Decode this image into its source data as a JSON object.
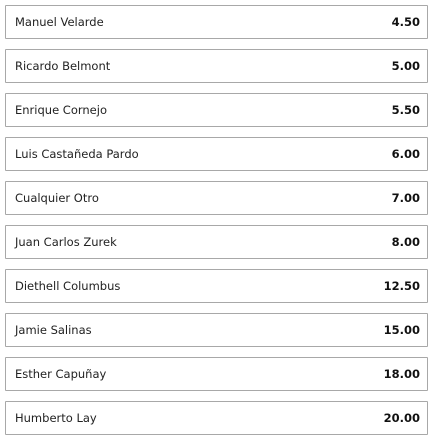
{
  "selections": [
    {
      "name": "Manuel Velarde",
      "odds": "4.50"
    },
    {
      "name": "Ricardo Belmont",
      "odds": "5.00"
    },
    {
      "name": "Enrique Cornejo",
      "odds": "5.50"
    },
    {
      "name": "Luis Castañeda Pardo",
      "odds": "6.00"
    },
    {
      "name": "Cualquier Otro",
      "odds": "7.00"
    },
    {
      "name": "Juan Carlos Zurek",
      "odds": "8.00"
    },
    {
      "name": "Diethell Columbus",
      "odds": "12.50"
    },
    {
      "name": "Jamie Salinas",
      "odds": "15.00"
    },
    {
      "name": "Esther Capuñay",
      "odds": "18.00"
    },
    {
      "name": "Humberto Lay",
      "odds": "20.00"
    }
  ]
}
